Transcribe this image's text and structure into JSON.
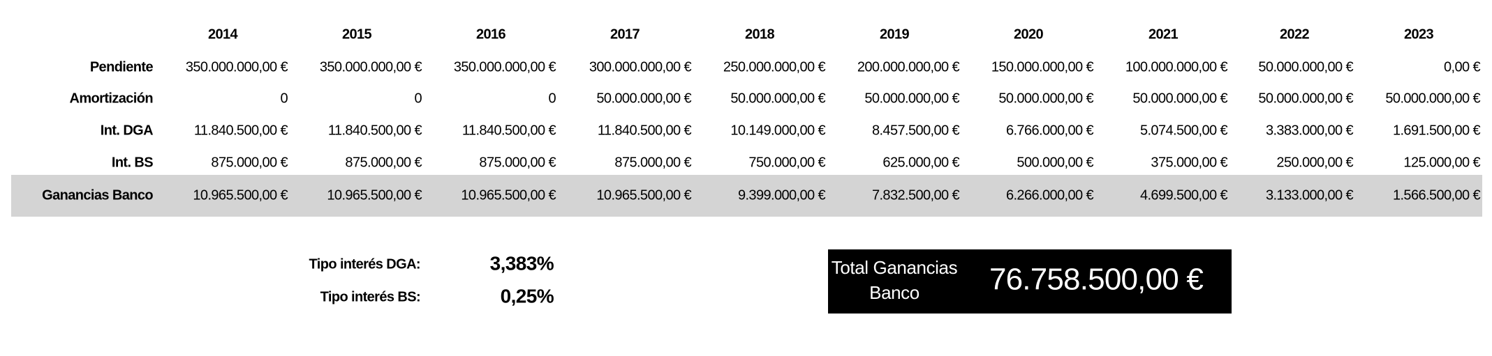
{
  "table": {
    "columns": [
      "2014",
      "2015",
      "2016",
      "2017",
      "2018",
      "2019",
      "2020",
      "2021",
      "2022",
      "2023"
    ],
    "rows": [
      {
        "label": "Pendiente",
        "values": [
          "350.000.000,00 €",
          "350.000.000,00 €",
          "350.000.000,00 €",
          "300.000.000,00 €",
          "250.000.000,00 €",
          "200.000.000,00 €",
          "150.000.000,00 €",
          "100.000.000,00 €",
          "50.000.000,00 €",
          "0,00 €"
        ]
      },
      {
        "label": "Amortización",
        "values": [
          "0",
          "0",
          "0",
          "50.000.000,00 €",
          "50.000.000,00 €",
          "50.000.000,00 €",
          "50.000.000,00 €",
          "50.000.000,00 €",
          "50.000.000,00 €",
          "50.000.000,00 €"
        ]
      },
      {
        "label": "Int. DGA",
        "values": [
          "11.840.500,00 €",
          "11.840.500,00 €",
          "11.840.500,00 €",
          "11.840.500,00 €",
          "10.149.000,00 €",
          "8.457.500,00 €",
          "6.766.000,00 €",
          "5.074.500,00 €",
          "3.383.000,00 €",
          "1.691.500,00 €"
        ]
      },
      {
        "label": "Int. BS",
        "values": [
          "875.000,00 €",
          "875.000,00 €",
          "875.000,00 €",
          "875.000,00 €",
          "750.000,00 €",
          "625.000,00 €",
          "500.000,00 €",
          "375.000,00 €",
          "250.000,00 €",
          "125.000,00 €"
        ]
      },
      {
        "label": "Ganancias Banco",
        "values": [
          "10.965.500,00 €",
          "10.965.500,00 €",
          "10.965.500,00 €",
          "10.965.500,00 €",
          "9.399.000,00 €",
          "7.832.500,00 €",
          "6.266.000,00 €",
          "4.699.500,00 €",
          "3.133.000,00 €",
          "1.566.500,00 €"
        ]
      }
    ]
  },
  "rates": [
    {
      "label": "Tipo interés DGA:",
      "value": "3,383%"
    },
    {
      "label": "Tipo interés BS:",
      "value": "0,25%"
    }
  ],
  "total": {
    "label_lines": [
      "Total Ganancias",
      "Banco"
    ],
    "value": "76.758.500,00 €"
  }
}
